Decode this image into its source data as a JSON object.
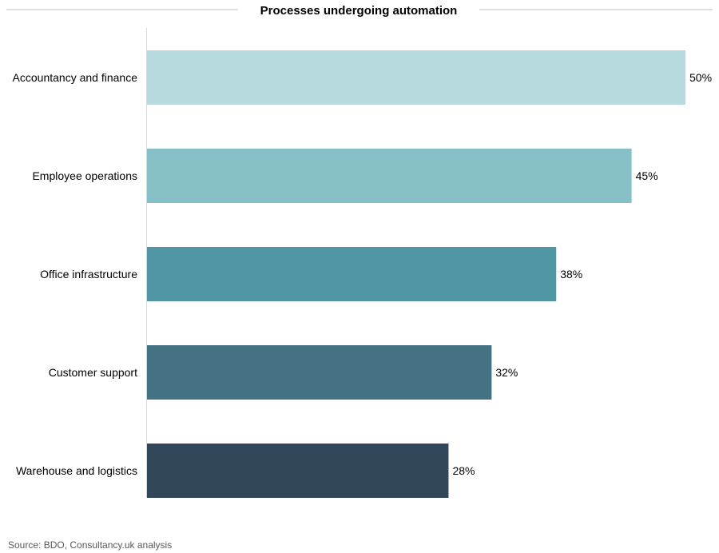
{
  "chart_data": {
    "type": "bar",
    "orientation": "horizontal",
    "title": "Processes undergoing automation",
    "categories": [
      "Accountancy and finance",
      "Employee operations",
      "Office infrastructure",
      "Customer support",
      "Warehouse and logistics"
    ],
    "values": [
      50,
      45,
      38,
      32,
      28
    ],
    "value_labels": [
      "50%",
      "45%",
      "38%",
      "32%",
      "28%"
    ],
    "colors": [
      "#b7dadf",
      "#88c0c8",
      "#5196a4",
      "#447282",
      "#32485a"
    ],
    "xlim": [
      0,
      50
    ],
    "grid": false,
    "legend": "none",
    "source": "Source: BDO, Consultancy.uk analysis"
  }
}
